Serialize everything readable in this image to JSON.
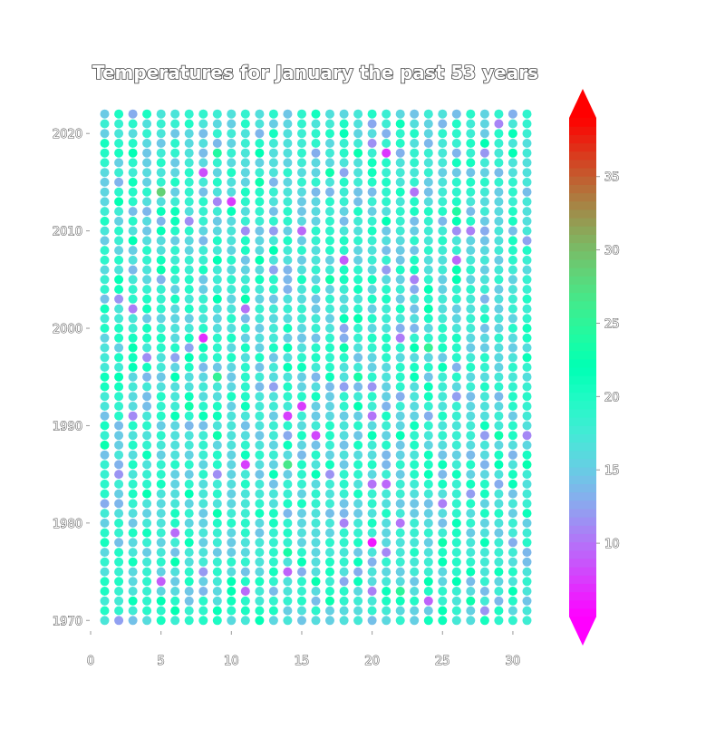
{
  "chart_data": {
    "type": "scatter",
    "title": "Temperatures for January the past 53 years",
    "xlabel": "",
    "ylabel": "",
    "x_ticks": [
      0,
      5,
      10,
      15,
      20,
      25,
      30
    ],
    "y_ticks": [
      1970,
      1980,
      1990,
      2000,
      2010,
      2020
    ],
    "x": [
      1,
      31
    ],
    "y": [
      1970,
      2022
    ],
    "xlim": [
      0,
      32
    ],
    "ylim": [
      1969,
      2023
    ],
    "colorbar": {
      "colormap": "rainbow",
      "ticks": [
        10,
        15,
        20,
        25,
        30,
        35
      ],
      "range": [
        5,
        39
      ],
      "extend": "both"
    },
    "value": "daily temperature per day (x) and year (y), mostly 10–25",
    "grid": false,
    "legend": "none"
  }
}
